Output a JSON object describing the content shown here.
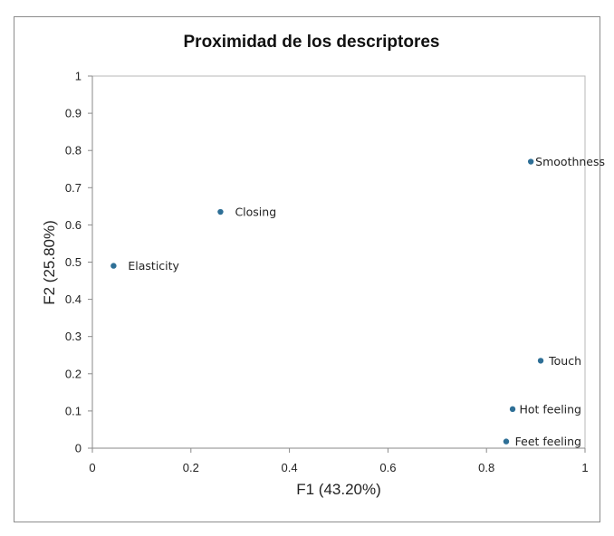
{
  "chart_data": {
    "type": "scatter",
    "title": "Proximidad de los descriptores",
    "xlabel": "F1 (43.20%)",
    "ylabel": "F2 (25.80%)",
    "xlim": [
      0,
      1
    ],
    "ylim": [
      0,
      1
    ],
    "x_ticks": [
      "0",
      "0.2",
      "0.4",
      "0.6",
      "0.8",
      "1"
    ],
    "y_ticks": [
      "0",
      "0.1",
      "0.2",
      "0.3",
      "0.4",
      "0.5",
      "0.6",
      "0.7",
      "0.8",
      "0.9",
      "1"
    ],
    "grid": false,
    "point_color": "#2e6f96",
    "points": [
      {
        "label": "Smoothness",
        "x": 0.89,
        "y": 0.77
      },
      {
        "label": "Closing",
        "x": 0.26,
        "y": 0.635
      },
      {
        "label": "Elasticity",
        "x": 0.043,
        "y": 0.49
      },
      {
        "label": "Touch",
        "x": 0.91,
        "y": 0.235
      },
      {
        "label": "Hot feeling",
        "x": 0.853,
        "y": 0.105
      },
      {
        "label": "Feet feeling",
        "x": 0.84,
        "y": 0.018
      }
    ]
  }
}
